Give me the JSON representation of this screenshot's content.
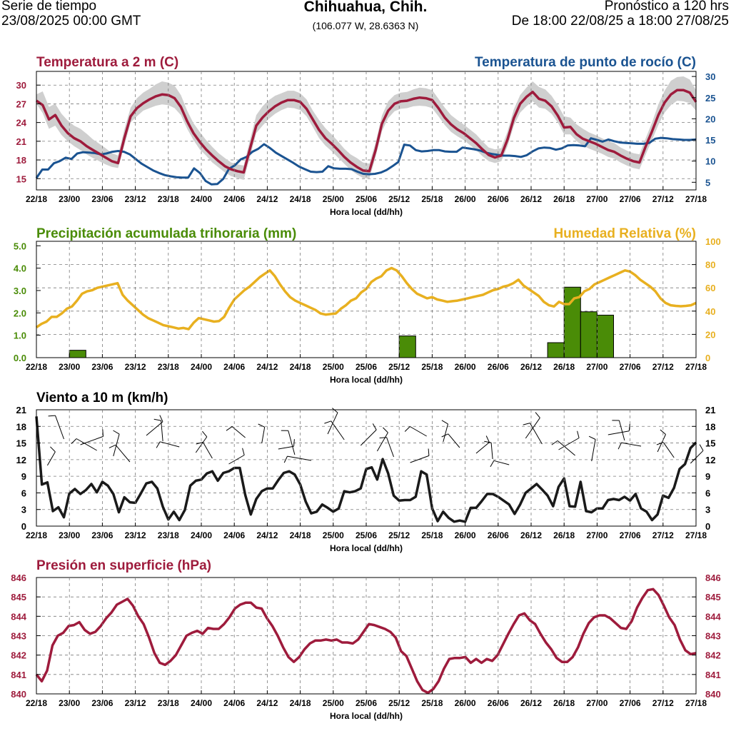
{
  "header": {
    "left_line1": "Serie de tiempo",
    "left_line2": "23/08/2025 00:00 GMT",
    "location": "Chihuahua, Chih.",
    "coords": "(106.077 W, 28.6363 N)",
    "right_line1": "Pronóstico a 120 hrs",
    "right_line2": "De 18:00 22/08/25 a 18:00 27/08/25"
  },
  "colors": {
    "temp": "#9e1b3c",
    "dew": "#1a5391",
    "band": "#cfcfcf",
    "precip": "#4a8c07",
    "rh": "#e8b020",
    "wind": "#1a1a1a",
    "pressure": "#9e1b3c"
  },
  "chart_data": [
    {
      "type": "line",
      "title": "Temperatura a 2 m (C)",
      "title_right": "Temperatura de punto de rocío (C)",
      "xlabel": "Hora local (dd/hh)",
      "x_ticks": [
        "22/18",
        "23/00",
        "23/06",
        "23/12",
        "23/18",
        "24/00",
        "24/06",
        "24/12",
        "24/18",
        "25/00",
        "25/06",
        "25/12",
        "25/18",
        "26/00",
        "26/06",
        "26/12",
        "26/18",
        "27/00",
        "27/06",
        "27/12",
        "27/18"
      ],
      "ylim": [
        13.2,
        32.2
      ],
      "y_ticks": [
        15,
        18,
        21,
        24,
        27,
        30
      ],
      "y2lim": [
        3.2,
        31.2
      ],
      "y2_ticks": [
        5,
        10,
        15,
        20,
        25,
        30
      ],
      "series": [
        {
          "name": "Temperatura a 2 m",
          "axis": "left",
          "values": [
            27.5,
            26.8,
            24.5,
            25.2,
            23.5,
            22.3,
            21.5,
            21,
            20.2,
            19.6,
            19,
            18.4,
            17.8,
            17.5,
            21.5,
            25,
            26.3,
            27.1,
            27.7,
            28.2,
            28.5,
            28.4,
            27.9,
            26.5,
            24.2,
            22.3,
            20.9,
            19.7,
            18.7,
            17.8,
            17,
            16.5,
            16.2,
            16,
            19.8,
            23.5,
            24.8,
            25.8,
            26.6,
            27.2,
            27.6,
            27.6,
            27.3,
            26.2,
            24.5,
            22.8,
            21.5,
            20.6,
            19.6,
            18.5,
            17.6,
            16.9,
            16.3,
            16.2,
            19.6,
            23.8,
            25.9,
            27,
            27.4,
            27.5,
            27.8,
            28,
            27.9,
            27.6,
            26.3,
            24.8,
            23.7,
            22.9,
            22.3,
            21.5,
            20.7,
            19.7,
            18.8,
            18.4,
            18.7,
            21.3,
            24.7,
            27,
            28.1,
            28.9,
            27.8,
            27.5,
            26.6,
            25.1,
            23.2,
            23.3,
            22.1,
            21.4,
            21,
            20.6,
            20.1,
            19.6,
            19.3,
            18.7,
            18.2,
            17.8,
            17.6,
            20.2,
            22.6,
            25.2,
            27.2,
            28.5,
            29.2,
            29.2,
            28.8,
            27.3
          ]
        },
        {
          "name": "Temperatura de punto de rocío",
          "axis": "right",
          "values": [
            6,
            8,
            8,
            9.5,
            10,
            10.8,
            10.5,
            11.8,
            12.1,
            12,
            11.9,
            11.6,
            11.8,
            12.2,
            12.4,
            12.2,
            11.6,
            10.5,
            9.4,
            8.6,
            7.8,
            7.2,
            6.7,
            6.4,
            6.2,
            6.1,
            6.1,
            8.3,
            7.2,
            5.3,
            4.5,
            4.6,
            5.8,
            8.2,
            9,
            10.4,
            11,
            12.2,
            12.9,
            14,
            13.1,
            12,
            11.2,
            10.4,
            9.6,
            8.7,
            8.1,
            7.5,
            7.4,
            7.5,
            8.8,
            8.3,
            8.2,
            8.2,
            8.1,
            7.5,
            7,
            6.9,
            7,
            7.3,
            7.9,
            8.8,
            9.8,
            13.9,
            13.7,
            12.6,
            12.3,
            12.4,
            12.6,
            12.6,
            12.3,
            12.2,
            12.2,
            13.2,
            13,
            12.8,
            12.5,
            12,
            11.7,
            11.5,
            11.3,
            11.3,
            11.2,
            11,
            11.4,
            12.3,
            13,
            13.2,
            13.1,
            12.7,
            13,
            13.7,
            13.8,
            13.7,
            13.5,
            15.4,
            15,
            14.6,
            15.1,
            14.7,
            14.4,
            14.3,
            14.2,
            14.1,
            14.1,
            14.3,
            15.3,
            15.5,
            15.4,
            15.2,
            15.1,
            15,
            15,
            15.1
          ]
        }
      ],
      "band_lower": [
        27,
        25.5,
        23,
        23.5,
        22,
        21,
        20.2,
        19.6,
        18.9,
        18.3,
        17.8,
        17.3,
        16.9,
        16.7,
        20.3,
        24,
        25,
        25.9,
        26.3,
        26.7,
        26.9,
        26.8,
        26.3,
        25.2,
        23,
        21.2,
        19.7,
        18.7,
        17.6,
        16.8,
        16,
        15.4,
        15.1,
        14.8,
        18.5,
        22.3,
        23.5,
        24.6,
        25.4,
        26,
        26.4,
        26.3,
        26,
        25,
        23.3,
        21.5,
        20.3,
        19.4,
        18.4,
        17.4,
        16.4,
        15.7,
        15.1,
        15,
        18.5,
        22.6,
        24.7,
        25.8,
        26.2,
        26.3,
        26.6,
        26.7,
        26.6,
        26.3,
        25,
        23.6,
        22.5,
        21.8,
        21.2,
        20.4,
        19.6,
        18.6,
        17.8,
        17.5,
        17.8,
        20.2,
        23.5,
        25.6,
        26.6,
        27.4,
        26.4,
        26.2,
        25.4,
        24,
        22.1,
        22.1,
        21,
        20.3,
        19.8,
        19.4,
        19,
        18.5,
        18.2,
        17.6,
        17.1,
        16.7,
        16.5,
        18.9,
        21.2,
        23.6,
        25.6,
        26.8,
        27.5,
        27.4,
        27.1,
        25.9
      ],
      "band_upper": [
        28.5,
        29,
        26.5,
        27,
        25.4,
        24.3,
        23.5,
        23,
        22.2,
        21.3,
        20.6,
        19.9,
        19.1,
        18.7,
        22.9,
        26.4,
        27.9,
        28.8,
        29.4,
        30.1,
        30.6,
        30.4,
        29.9,
        28.4,
        25.9,
        23.9,
        22.5,
        21.2,
        20.1,
        19.1,
        18.3,
        17.6,
        17.3,
        17.1,
        21.2,
        25.2,
        26.6,
        27.6,
        28.3,
        28.7,
        29.1,
        29.1,
        28.7,
        27.7,
        25.9,
        24.4,
        23.1,
        22.1,
        21,
        19.8,
        18.9,
        18.3,
        17.6,
        17.4,
        20.8,
        25.1,
        27.4,
        28.4,
        28.8,
        28.9,
        29.3,
        29.6,
        29.5,
        29.2,
        27.8,
        26.4,
        25.2,
        24.4,
        23.7,
        22.9,
        22.1,
        21,
        20,
        19.7,
        19.9,
        22.6,
        26.1,
        28.4,
        29.6,
        30.6,
        29.7,
        29.3,
        28.3,
        26.8,
        25,
        24.8,
        23.7,
        23,
        22.4,
        22,
        21.5,
        21,
        20.7,
        20,
        19.5,
        19.1,
        18.9,
        21.5,
        24,
        26.9,
        29.1,
        30.7,
        31.3,
        31.4,
        30.9,
        29.2
      ]
    },
    {
      "type": "bar",
      "title": "Precipitación acumulada trihoraria (mm)",
      "title_right": "Humedad Relativa (%)",
      "xlabel": "Hora local (dd/hh)",
      "x_ticks": [
        "22/18",
        "23/00",
        "23/06",
        "23/12",
        "23/18",
        "24/00",
        "24/06",
        "24/12",
        "24/18",
        "25/00",
        "25/06",
        "25/12",
        "25/18",
        "26/00",
        "26/06",
        "26/12",
        "26/18",
        "27/00",
        "27/06",
        "27/12",
        "27/18"
      ],
      "ylim": [
        0,
        5.2
      ],
      "y_ticks": [
        0.0,
        1.0,
        2.0,
        3.0,
        4.0,
        5.0
      ],
      "y_tick_labels": [
        "0.0",
        "1.0",
        "2.0",
        "3.0",
        "4.0",
        "5.0"
      ],
      "y2lim": [
        0,
        100
      ],
      "y2_ticks": [
        0,
        20,
        40,
        60,
        80,
        100
      ],
      "precip_bars": [
        {
          "start_hour": 6,
          "end_hour": 9,
          "value": 0.33
        },
        {
          "start_hour": 66,
          "end_hour": 69,
          "value": 0.97
        },
        {
          "start_hour": 93,
          "end_hour": 96,
          "value": 0.67
        },
        {
          "start_hour": 96,
          "end_hour": 99,
          "value": 3.15
        },
        {
          "start_hour": 99,
          "end_hour": 102,
          "value": 2.05
        },
        {
          "start_hour": 102,
          "end_hour": 105,
          "value": 1.9
        }
      ],
      "rh_series": {
        "name": "Humedad Relativa",
        "values": [
          26,
          29,
          31,
          35,
          35,
          38,
          42,
          44,
          49,
          55,
          57,
          58,
          60,
          61,
          62,
          63,
          64,
          54,
          49,
          45,
          41,
          37,
          34,
          32,
          30,
          28,
          27,
          26,
          25,
          25.5,
          24.5,
          30,
          34,
          33,
          32,
          31,
          31.5,
          35,
          43,
          50,
          54,
          58,
          61,
          65,
          69,
          72,
          75,
          70,
          63,
          57,
          52,
          49,
          47,
          45,
          43,
          41,
          38,
          37,
          37.5,
          38,
          42,
          45,
          49,
          51,
          56,
          59,
          65,
          68,
          70,
          75,
          77,
          75,
          70,
          64,
          59,
          55,
          53,
          51,
          52,
          50,
          49,
          48,
          48.5,
          49,
          50,
          51,
          52,
          53,
          54,
          56,
          58,
          59,
          61,
          62,
          64,
          67,
          62,
          59,
          56,
          53,
          48,
          45,
          44,
          48,
          46,
          46,
          51,
          52,
          57,
          59,
          63,
          65,
          67,
          69,
          71,
          73,
          75,
          74,
          71,
          67,
          64,
          61,
          57,
          51,
          47,
          45,
          44.5,
          44.2,
          44.5,
          45,
          47
        ]
      }
    },
    {
      "type": "line",
      "title": "Viento a 10 m (km/h)",
      "xlabel": "Hora local (dd/hh)",
      "x_ticks": [
        "22/18",
        "23/00",
        "23/06",
        "23/12",
        "23/18",
        "24/00",
        "24/06",
        "24/12",
        "24/18",
        "25/00",
        "25/06",
        "25/12",
        "25/18",
        "26/00",
        "26/06",
        "26/12",
        "26/18",
        "27/00",
        "27/06",
        "27/12",
        "27/18"
      ],
      "ylim": [
        0,
        21
      ],
      "y_ticks": [
        0,
        3,
        6,
        9,
        12,
        15,
        18,
        21
      ],
      "series": [
        {
          "name": "Viento a 10 m",
          "values": [
            19.8,
            7.5,
            7.9,
            2.7,
            3.4,
            1.6,
            5.9,
            6.7,
            5.8,
            6.5,
            7.6,
            6.1,
            8,
            7.3,
            5.8,
            2.5,
            5.2,
            4.3,
            4.2,
            5.9,
            7.7,
            8,
            6.8,
            3.5,
            1.2,
            2.6,
            1.1,
            2.9,
            7.3,
            8.2,
            8.4,
            9.5,
            9.9,
            8.2,
            9.6,
            9.9,
            10.5,
            10.5,
            5.6,
            2.1,
            4.9,
            6.3,
            6.8,
            6.8,
            8.3,
            9.6,
            9.9,
            9.3,
            7.5,
            4.4,
            2.3,
            2.6,
            3.9,
            3.3,
            2.6,
            3.2,
            6.3,
            6.1,
            6.3,
            6.8,
            10.3,
            10.6,
            8.4,
            12.1,
            9.5,
            5.5,
            4.6,
            4.7,
            4.7,
            5.3,
            9.9,
            9.3,
            3.2,
            0.9,
            2.6,
            1.5,
            0.8,
            1,
            0.8,
            3.3,
            3.3,
            4.5,
            5.8,
            5.8,
            5.3,
            4.6,
            3.9,
            2.2,
            3.9,
            6,
            6.8,
            7.6,
            6.6,
            5.5,
            3.6,
            7.1,
            8.6,
            3.6,
            3.5,
            8,
            2.7,
            2.5,
            3.2,
            3.2,
            4.7,
            4.9,
            4.7,
            5.3,
            4.6,
            5.8,
            3.2,
            2.6,
            1.1,
            2.1,
            5.5,
            5.1,
            6.9,
            10.3,
            11.2,
            14.1,
            15.1
          ]
        }
      ]
    },
    {
      "type": "line",
      "title": "Presión en superficie (hPa)",
      "xlabel": "Hora local (dd/hh)",
      "x_ticks": [
        "22/18",
        "23/00",
        "23/06",
        "23/12",
        "23/18",
        "24/00",
        "24/06",
        "24/12",
        "24/18",
        "25/00",
        "25/06",
        "25/12",
        "25/18",
        "26/00",
        "26/06",
        "26/12",
        "26/18",
        "27/00",
        "27/06",
        "27/12",
        "27/18"
      ],
      "ylim": [
        840,
        846
      ],
      "y_ticks": [
        840,
        841,
        842,
        843,
        844,
        845,
        846
      ],
      "series": [
        {
          "name": "Presión en superficie",
          "values": [
            841,
            840.65,
            841.2,
            842.5,
            843,
            843.15,
            843.5,
            843.55,
            843.7,
            843.3,
            843.1,
            843.2,
            843.5,
            843.9,
            844.2,
            844.6,
            844.75,
            844.9,
            844.55,
            844,
            843.6,
            842.9,
            842.1,
            841.6,
            841.5,
            841.7,
            842,
            842.5,
            843,
            843.15,
            843.25,
            843.1,
            843.4,
            843.35,
            843.35,
            843.6,
            843.95,
            844.4,
            844.6,
            844.7,
            844.7,
            844.45,
            844.4,
            843.9,
            843.5,
            843,
            842.4,
            841.9,
            841.65,
            841.9,
            842.3,
            842.6,
            842.75,
            842.75,
            842.8,
            842.75,
            842.8,
            842.65,
            842.65,
            842.6,
            842.8,
            843.2,
            843.6,
            843.55,
            843.45,
            843.35,
            843.2,
            842.9,
            842.2,
            841.95,
            841.3,
            840.65,
            840.2,
            840.05,
            840.25,
            840.65,
            841.3,
            841.8,
            841.85,
            841.85,
            841.9,
            841.6,
            841.8,
            841.6,
            841.8,
            841.7,
            842,
            842.55,
            843.1,
            843.6,
            844.05,
            844.15,
            843.8,
            843.6,
            843.1,
            842.65,
            842.3,
            841.85,
            841.65,
            841.65,
            841.9,
            842.4,
            843.1,
            843.65,
            843.95,
            844.05,
            844.05,
            843.9,
            843.65,
            843.4,
            843.35,
            843.75,
            844.45,
            844.95,
            845.35,
            845.4,
            845.1,
            844.55,
            843.95,
            843.55,
            842.8,
            842.25,
            842.05,
            842.1
          ]
        }
      ]
    }
  ]
}
